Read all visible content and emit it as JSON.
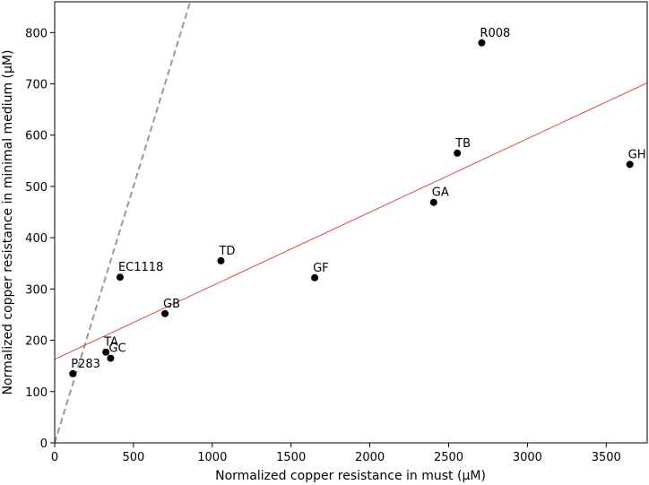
{
  "chart_data": {
    "type": "scatter",
    "xlabel": "Normalized copper resistance in must (µM)",
    "ylabel": "Normalized copper resistance in minimal medium (µM)",
    "xlim": [
      0,
      3760
    ],
    "ylim": [
      0,
      860
    ],
    "xticks": [
      0,
      500,
      1000,
      1500,
      2000,
      2500,
      3000,
      3500
    ],
    "yticks": [
      0,
      100,
      200,
      300,
      400,
      500,
      600,
      700,
      800
    ],
    "points": [
      {
        "label": "P283",
        "x": 115,
        "y": 135
      },
      {
        "label": "TA",
        "x": 325,
        "y": 177
      },
      {
        "label": "GC",
        "x": 355,
        "y": 165
      },
      {
        "label": "EC1118",
        "x": 415,
        "y": 323
      },
      {
        "label": "GB",
        "x": 700,
        "y": 252
      },
      {
        "label": "TD",
        "x": 1055,
        "y": 355
      },
      {
        "label": "GF",
        "x": 1650,
        "y": 322
      },
      {
        "label": "GA",
        "x": 2405,
        "y": 469
      },
      {
        "label": "TB",
        "x": 2555,
        "y": 565
      },
      {
        "label": "R008",
        "x": 2710,
        "y": 780
      },
      {
        "label": "GH",
        "x": 3650,
        "y": 543
      }
    ],
    "fit_line": {
      "color": "#e8423f",
      "x": [
        0,
        3760
      ],
      "y": [
        163,
        702
      ]
    },
    "reference_line": {
      "color": "#999999",
      "style": "dashed",
      "x": [
        0,
        880
      ],
      "y": [
        0,
        880
      ]
    },
    "grid": false,
    "legend": "none"
  }
}
